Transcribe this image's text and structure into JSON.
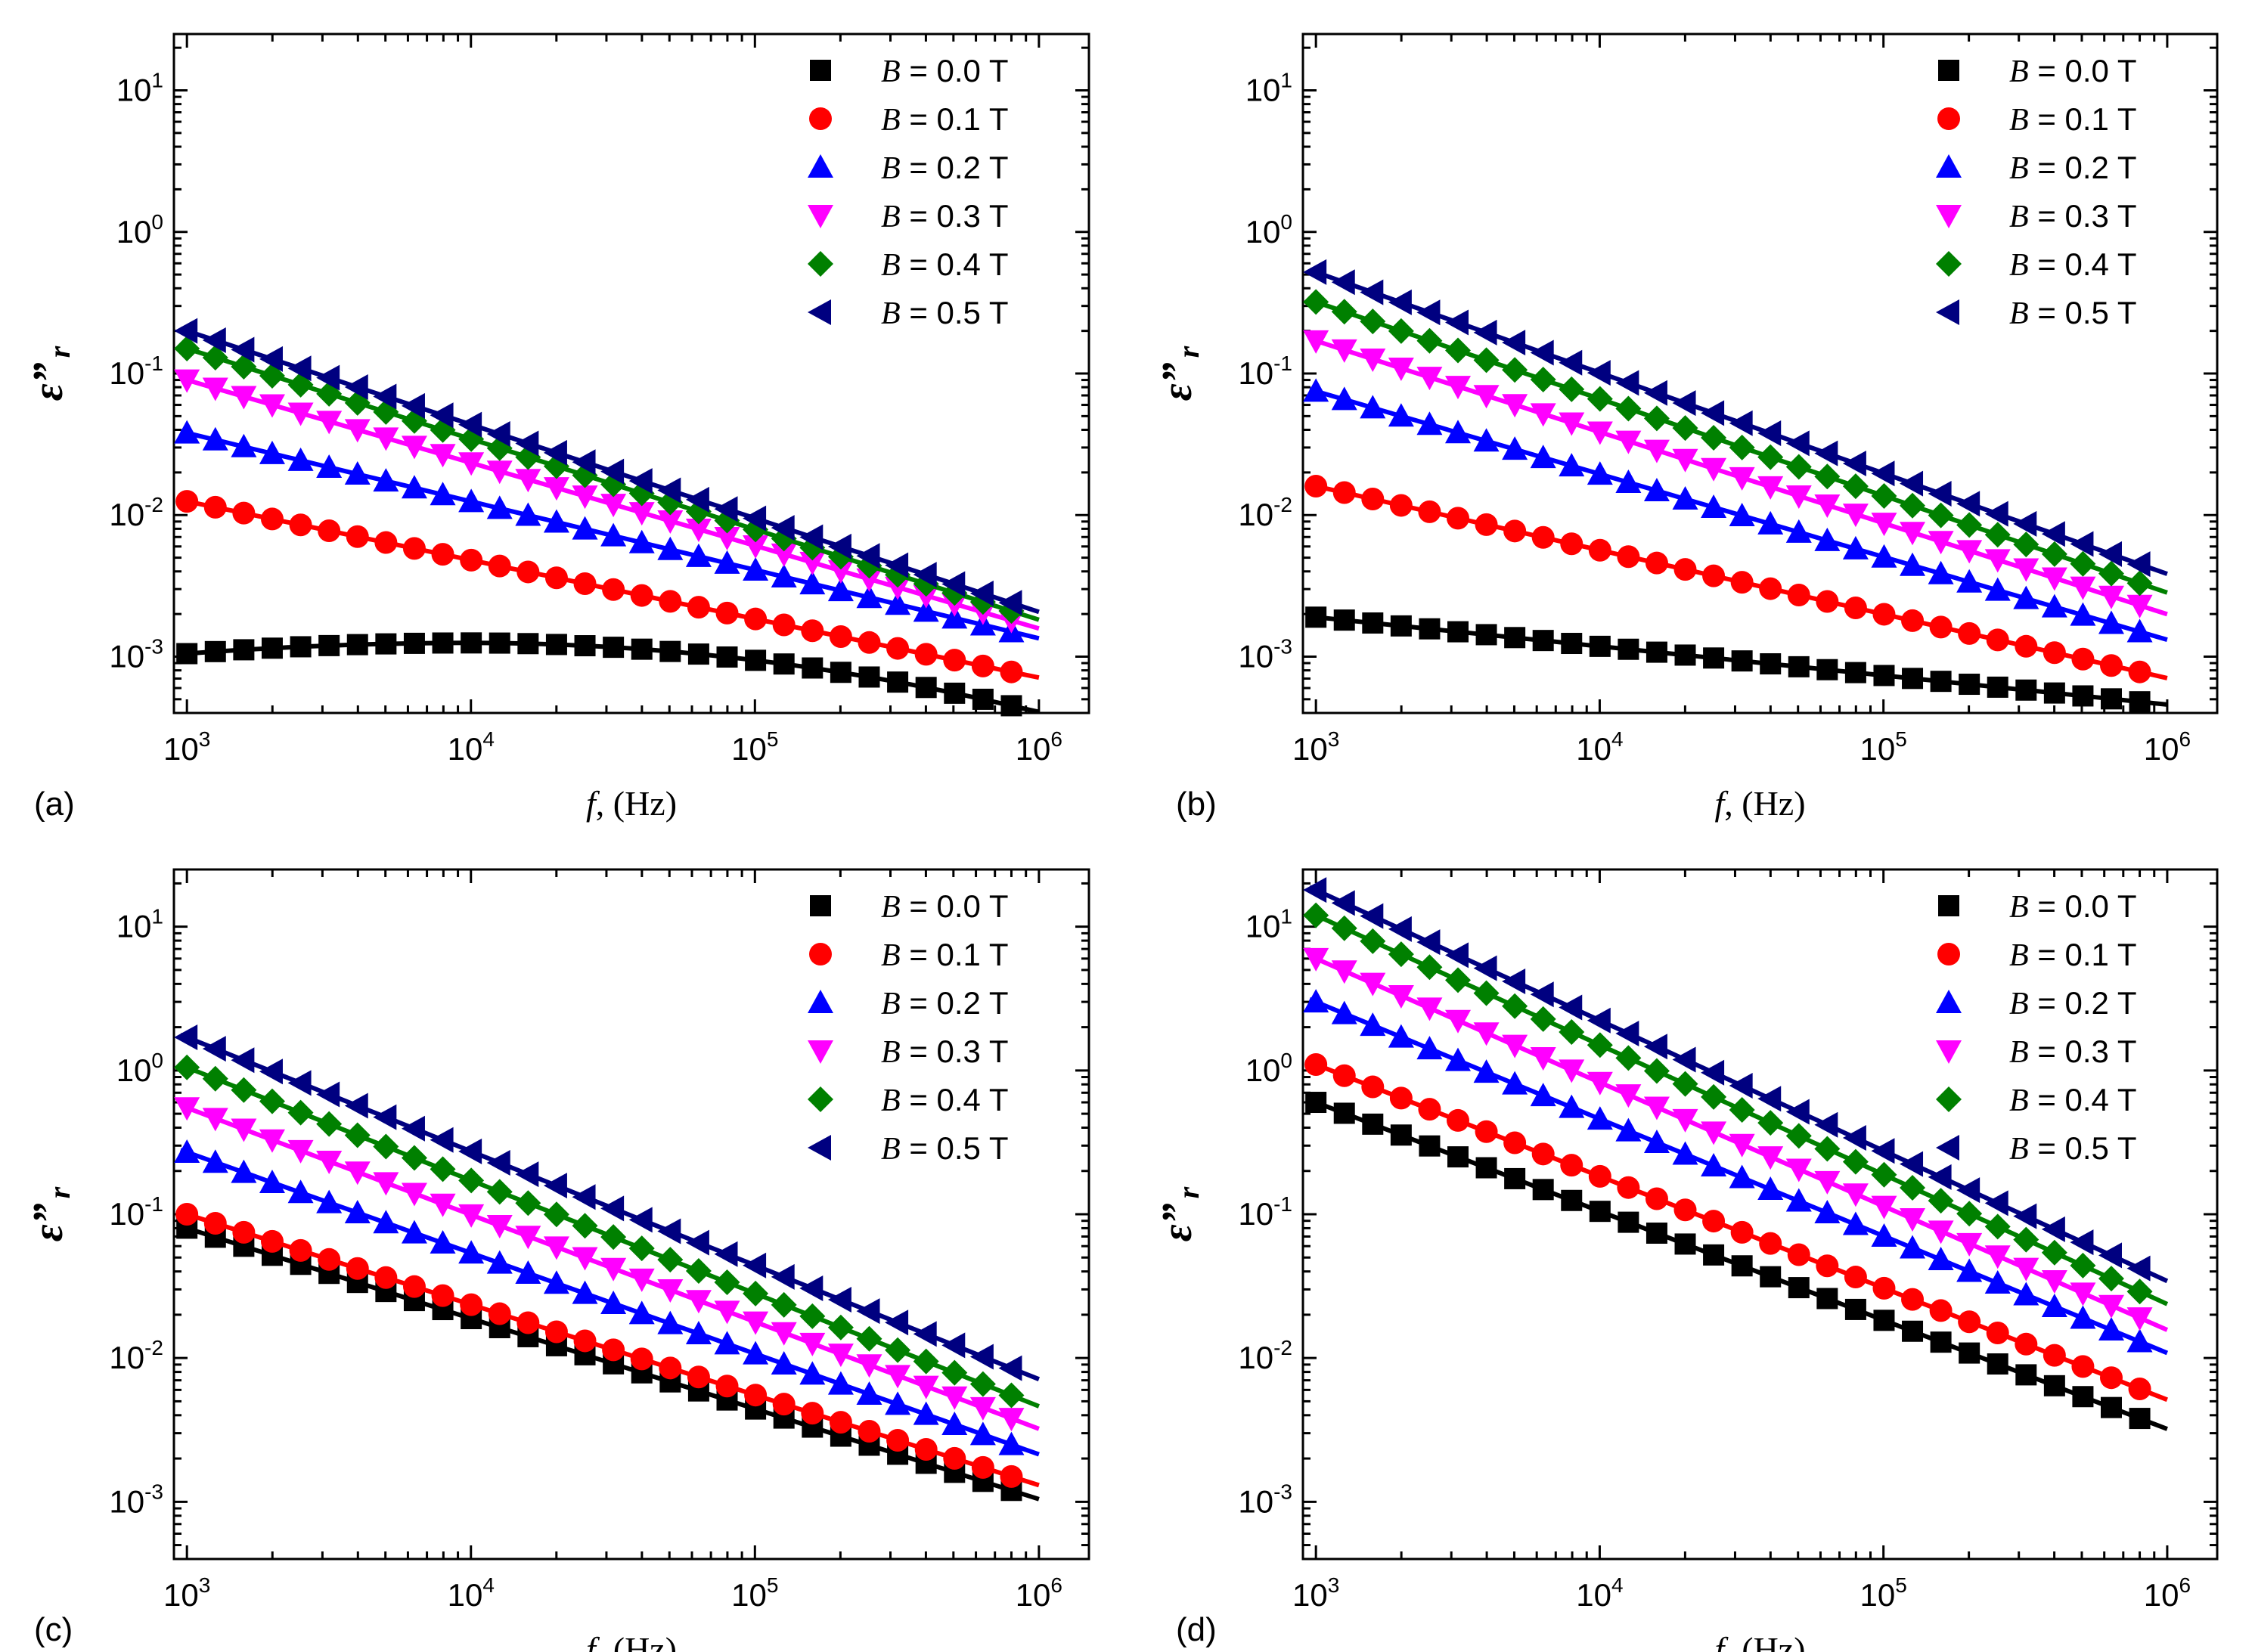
{
  "chart_data": [
    {
      "type": "scatter",
      "panel_label": "(a)",
      "xlabel_italic": "f",
      "xlabel_rest": ", (Hz)",
      "ylabel_main": "ε”",
      "ylabel_sub": "r",
      "xscale": "log",
      "yscale": "log",
      "xlim": [
        900,
        1500000
      ],
      "ylim": [
        0.0004,
        25
      ],
      "x_ticks": [
        {
          "base": "10",
          "exp": "3"
        },
        {
          "base": "10",
          "exp": "4"
        },
        {
          "base": "10",
          "exp": "5"
        },
        {
          "base": "10",
          "exp": "6"
        }
      ],
      "y_ticks": [
        {
          "base": "10",
          "exp": "-3"
        },
        {
          "base": "10",
          "exp": "-2"
        },
        {
          "base": "10",
          "exp": "-1"
        },
        {
          "base": "10",
          "exp": "0"
        },
        {
          "base": "10",
          "exp": "1"
        }
      ],
      "legend_position": "top-right",
      "series": [
        {
          "name": "B = 0.0 T",
          "B": "B",
          "rest": " = 0.0 T",
          "color": "#000000",
          "marker": "square",
          "y_start": 0.00105,
          "y_end": 0.00045,
          "peak": 0.00125,
          "peak_x": 10000
        },
        {
          "name": "B = 0.1 T",
          "B": "B",
          "rest": " = 0.1 T",
          "color": "#ff0000",
          "marker": "circle",
          "y_start": 0.0125,
          "y_end": 0.00078
        },
        {
          "name": "B = 0.2 T",
          "B": "B",
          "rest": " = 0.2 T",
          "color": "#0000ff",
          "marker": "triangle-up",
          "y_start": 0.038,
          "y_end": 0.0015
        },
        {
          "name": "B = 0.3 T",
          "B": "B",
          "rest": " = 0.3 T",
          "color": "#ff00ff",
          "marker": "triangle-down",
          "y_start": 0.09,
          "y_end": 0.0018
        },
        {
          "name": "B = 0.4 T",
          "B": "B",
          "rest": " = 0.4 T",
          "color": "#008000",
          "marker": "diamond",
          "y_start": 0.15,
          "y_end": 0.0021
        },
        {
          "name": "B = 0.5 T",
          "B": "B",
          "rest": " = 0.5 T",
          "color": "#000080",
          "marker": "triangle-left",
          "y_start": 0.2,
          "y_end": 0.0024
        }
      ]
    },
    {
      "type": "scatter",
      "panel_label": "(b)",
      "xlabel_italic": "f",
      "xlabel_rest": ", (Hz)",
      "ylabel_main": "ε”",
      "ylabel_sub": "r",
      "xscale": "log",
      "yscale": "log",
      "xlim": [
        900,
        1500000
      ],
      "ylim": [
        0.0004,
        25
      ],
      "x_ticks": [
        {
          "base": "10",
          "exp": "3"
        },
        {
          "base": "10",
          "exp": "4"
        },
        {
          "base": "10",
          "exp": "5"
        },
        {
          "base": "10",
          "exp": "6"
        }
      ],
      "y_ticks": [
        {
          "base": "10",
          "exp": "-3"
        },
        {
          "base": "10",
          "exp": "-2"
        },
        {
          "base": "10",
          "exp": "-1"
        },
        {
          "base": "10",
          "exp": "0"
        },
        {
          "base": "10",
          "exp": "1"
        }
      ],
      "legend_position": "top-right",
      "series": [
        {
          "name": "B = 0.0 T",
          "B": "B",
          "rest": " = 0.0 T",
          "color": "#000000",
          "marker": "square",
          "y_start": 0.0019,
          "y_end": 0.00048
        },
        {
          "name": "B = 0.1 T",
          "B": "B",
          "rest": " = 0.1 T",
          "color": "#ff0000",
          "marker": "circle",
          "y_start": 0.016,
          "y_end": 0.00078
        },
        {
          "name": "B = 0.2 T",
          "B": "B",
          "rest": " = 0.2 T",
          "color": "#0000ff",
          "marker": "triangle-up",
          "y_start": 0.075,
          "y_end": 0.0015
        },
        {
          "name": "B = 0.3 T",
          "B": "B",
          "rest": " = 0.3 T",
          "color": "#ff00ff",
          "marker": "triangle-down",
          "y_start": 0.17,
          "y_end": 0.0023
        },
        {
          "name": "B = 0.4 T",
          "B": "B",
          "rest": " = 0.4 T",
          "color": "#008000",
          "marker": "diamond",
          "y_start": 0.32,
          "y_end": 0.0033
        },
        {
          "name": "B = 0.5 T",
          "B": "B",
          "rest": " = 0.5 T",
          "color": "#000080",
          "marker": "triangle-left",
          "y_start": 0.52,
          "y_end": 0.0045
        }
      ]
    },
    {
      "type": "scatter",
      "panel_label": "(c)",
      "xlabel_italic": "f",
      "xlabel_rest": ", (Hz)",
      "ylabel_main": "ε”",
      "ylabel_sub": "r",
      "xscale": "log",
      "yscale": "log",
      "xlim": [
        900,
        1500000
      ],
      "ylim": [
        0.0004,
        25
      ],
      "x_ticks": [
        {
          "base": "10",
          "exp": "3"
        },
        {
          "base": "10",
          "exp": "4"
        },
        {
          "base": "10",
          "exp": "5"
        },
        {
          "base": "10",
          "exp": "6"
        }
      ],
      "y_ticks": [
        {
          "base": "10",
          "exp": "-3"
        },
        {
          "base": "10",
          "exp": "-2"
        },
        {
          "base": "10",
          "exp": "-1"
        },
        {
          "base": "10",
          "exp": "0"
        },
        {
          "base": "10",
          "exp": "1"
        }
      ],
      "legend_position": "top-right",
      "series": [
        {
          "name": "B = 0.0 T",
          "B": "B",
          "rest": " = 0.0 T",
          "color": "#000000",
          "marker": "square",
          "y_start": 0.08,
          "y_end": 0.0012
        },
        {
          "name": "B = 0.1 T",
          "B": "B",
          "rest": " = 0.1 T",
          "color": "#ff0000",
          "marker": "circle",
          "y_start": 0.1,
          "y_end": 0.0015
        },
        {
          "name": "B = 0.2 T",
          "B": "B",
          "rest": " = 0.2 T",
          "color": "#0000ff",
          "marker": "triangle-up",
          "y_start": 0.27,
          "y_end": 0.0025
        },
        {
          "name": "B = 0.3 T",
          "B": "B",
          "rest": " = 0.3 T",
          "color": "#ff00ff",
          "marker": "triangle-down",
          "y_start": 0.55,
          "y_end": 0.0038
        },
        {
          "name": "B = 0.4 T",
          "B": "B",
          "rest": " = 0.4 T",
          "color": "#008000",
          "marker": "diamond",
          "y_start": 1.05,
          "y_end": 0.0055
        },
        {
          "name": "B = 0.5 T",
          "B": "B",
          "rest": " = 0.5 T",
          "color": "#000080",
          "marker": "triangle-left",
          "y_start": 1.7,
          "y_end": 0.0085
        }
      ]
    },
    {
      "type": "scatter",
      "panel_label": "(d)",
      "xlabel_italic": "f",
      "xlabel_rest": ", (Hz)",
      "ylabel_main": "ε”",
      "ylabel_sub": "r",
      "xscale": "log",
      "yscale": "log",
      "xlim": [
        900,
        1500000
      ],
      "ylim": [
        0.0004,
        25
      ],
      "x_ticks": [
        {
          "base": "10",
          "exp": "3"
        },
        {
          "base": "10",
          "exp": "4"
        },
        {
          "base": "10",
          "exp": "5"
        },
        {
          "base": "10",
          "exp": "6"
        }
      ],
      "y_ticks": [
        {
          "base": "10",
          "exp": "-3"
        },
        {
          "base": "10",
          "exp": "-2"
        },
        {
          "base": "10",
          "exp": "-1"
        },
        {
          "base": "10",
          "exp": "0"
        },
        {
          "base": "10",
          "exp": "1"
        }
      ],
      "legend_position": "top-right",
      "series": [
        {
          "name": "B = 0.0 T",
          "B": "B",
          "rest": " = 0.0 T",
          "color": "#000000",
          "marker": "square",
          "y_start": 0.6,
          "y_end": 0.0038
        },
        {
          "name": "B = 0.1 T",
          "B": "B",
          "rest": " = 0.1 T",
          "color": "#ff0000",
          "marker": "circle",
          "y_start": 1.1,
          "y_end": 0.0061
        },
        {
          "name": "B = 0.2 T",
          "B": "B",
          "rest": " = 0.2 T",
          "color": "#0000ff",
          "marker": "triangle-up",
          "y_start": 3.0,
          "y_end": 0.013
        },
        {
          "name": "B = 0.3 T",
          "B": "B",
          "rest": " = 0.3 T",
          "color": "#ff00ff",
          "marker": "triangle-down",
          "y_start": 6.0,
          "y_end": 0.019
        },
        {
          "name": "B = 0.4 T",
          "B": "B",
          "rest": " = 0.4 T",
          "color": "#008000",
          "marker": "diamond",
          "y_start": 12.0,
          "y_end": 0.029
        },
        {
          "name": "B = 0.5 T",
          "B": "B",
          "rest": " = 0.5 T",
          "color": "#000080",
          "marker": "triangle-left",
          "y_start": 18.0,
          "y_end": 0.042
        }
      ]
    }
  ]
}
